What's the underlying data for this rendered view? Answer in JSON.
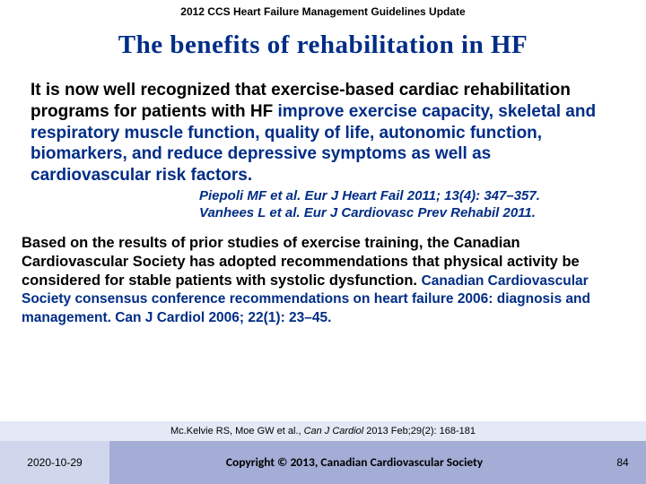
{
  "header": "2012 CCS Heart Failure Management Guidelines Update",
  "title": "The benefits of rehabilitation in HF",
  "para1": {
    "lead": "It is now well recognized that exercise-based cardiac rehabilitation programs for patients with HF ",
    "emph": "improve exercise capacity, skeletal and respiratory muscle function, quality of life, autonomic function, biomarkers, and reduce depressive symptoms as well as cardiovascular risk factors."
  },
  "cite1a": "Piepoli MF et al. Eur J Heart Fail 2011; 13(4): 347–357.",
  "cite1b": "Vanhees L et al. Eur J Cardiovasc Prev Rehabil 2011.",
  "para2": "Based on the results of prior studies of exercise training, the Canadian Cardiovascular Society has adopted recommendations that physical activity be considered for stable patients with systolic dysfunction.",
  "cite2": "Canadian Cardiovascular Society consensus conference recommendations on heart failure 2006: diagnosis and management. Can J Cardiol 2006; 22(1): 23–45.",
  "ref_prefix": "Mc.Kelvie RS, Moe GW et al., ",
  "ref_italic": "Can J Cardiol ",
  "ref_suffix": "2013 Feb;29(2): 168-181",
  "footer": {
    "date": "2020-10-29",
    "copyright": "Copyright © 2013, Canadian Cardiovascular Society",
    "page": "84"
  },
  "colors": {
    "navy": "#002d86",
    "refbar_bg": "#e5e9f5",
    "date_bg": "#d0d7ec",
    "copy_bg": "#a3add6"
  }
}
